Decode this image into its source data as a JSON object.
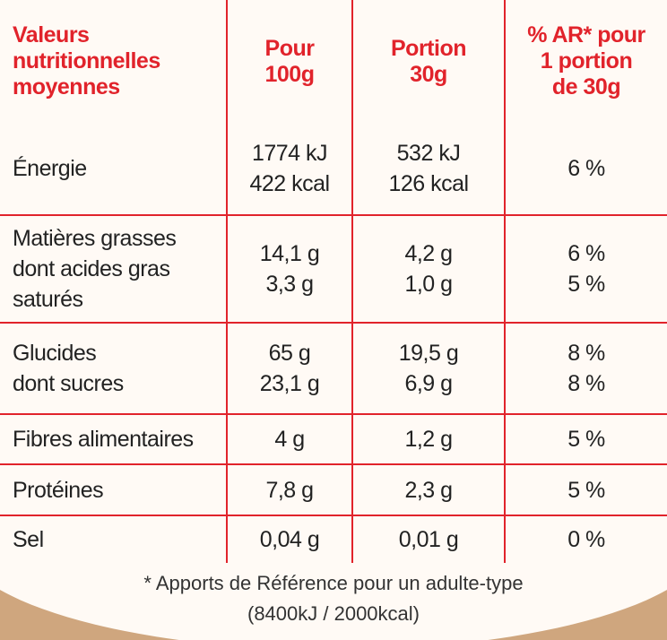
{
  "table": {
    "header": [
      [
        "Valeurs",
        "nutritionnelles",
        "moyennes"
      ],
      [
        "Pour",
        "100g"
      ],
      [
        "Portion",
        "30g"
      ],
      [
        "% AR* pour",
        "1 portion",
        "de 30g"
      ]
    ],
    "rows": [
      [
        [
          "Énergie"
        ],
        [
          "1774 kJ",
          "422 kcal"
        ],
        [
          "532 kJ",
          "126 kcal"
        ],
        [
          "6 %"
        ]
      ],
      [
        [
          "Matières grasses",
          "dont acides gras",
          "saturés"
        ],
        [
          "14,1 g",
          "3,3 g"
        ],
        [
          "4,2 g",
          "1,0 g"
        ],
        [
          "6 %",
          "5 %"
        ]
      ],
      [
        [
          "Glucides",
          "dont sucres"
        ],
        [
          "65 g",
          "23,1 g"
        ],
        [
          "19,5 g",
          "6,9 g"
        ],
        [
          "8 %",
          "8 %"
        ]
      ],
      [
        [
          "Fibres alimentaires"
        ],
        [
          "4 g"
        ],
        [
          "1,2 g"
        ],
        [
          "5 %"
        ]
      ],
      [
        [
          "Protéines"
        ],
        [
          "7,8 g"
        ],
        [
          "2,3 g"
        ],
        [
          "5 %"
        ]
      ],
      [
        [
          "Sel"
        ],
        [
          "0,04 g"
        ],
        [
          "0,01 g"
        ],
        [
          "0 %"
        ]
      ]
    ]
  },
  "footer": [
    "* Apports de Référence pour un adulte-type",
    "(8400kJ / 2000kcal)"
  ]
}
